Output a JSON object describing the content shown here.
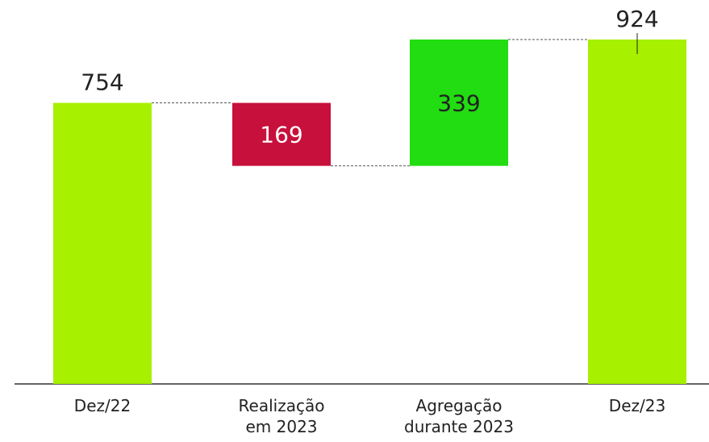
{
  "chart_data": {
    "type": "waterfall",
    "categories": [
      "Dez/22",
      "Realização\nem 2023",
      "Agregação\ndurante 2023",
      "Dez/23"
    ],
    "values": [
      754,
      169,
      339,
      924
    ],
    "measures": [
      "total",
      "decrease",
      "increase",
      "total"
    ],
    "colors": [
      "#a6f000",
      "#c8103c",
      "#22dd11",
      "#a6f000"
    ]
  }
}
